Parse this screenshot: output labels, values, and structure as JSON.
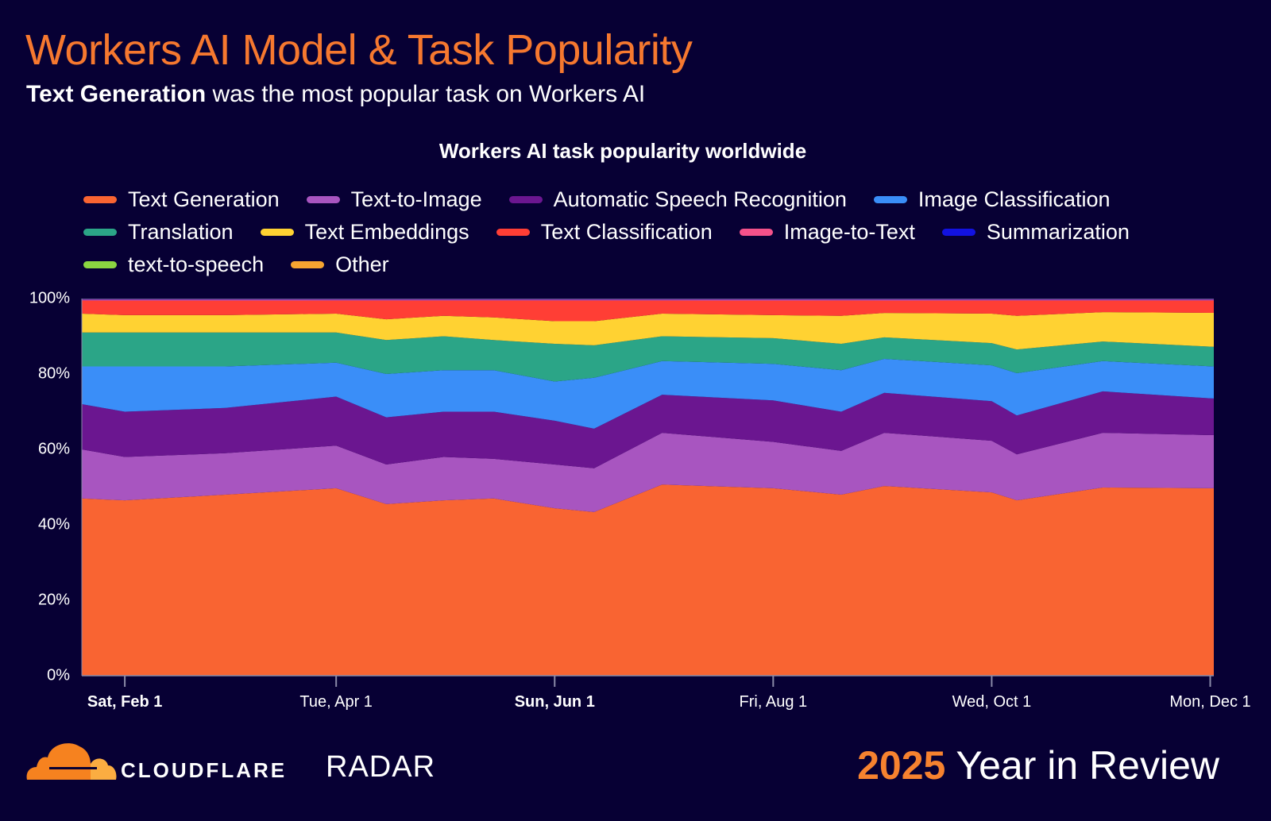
{
  "header": {
    "title": "Workers AI Model & Task Popularity",
    "subtitle_bold": "Text Generation",
    "subtitle_rest": " was the most popular task on Workers AI"
  },
  "chart_data": {
    "type": "area",
    "stacked": true,
    "normalized": true,
    "title": "Workers AI task popularity worldwide",
    "xlabel": "",
    "ylabel": "",
    "ylim": [
      0,
      100
    ],
    "y_ticks": [
      "0%",
      "20%",
      "40%",
      "60%",
      "80%",
      "100%"
    ],
    "x_range": [
      "2025-01-20",
      "2025-12-02"
    ],
    "x_ticks": [
      {
        "date": "2025-02-01",
        "label": "Sat, Feb 1",
        "bold": true
      },
      {
        "date": "2025-04-01",
        "label": "Tue, Apr 1",
        "bold": false
      },
      {
        "date": "2025-06-01",
        "label": "Sun, Jun 1",
        "bold": true
      },
      {
        "date": "2025-08-01",
        "label": "Fri, Aug 1",
        "bold": false
      },
      {
        "date": "2025-10-01",
        "label": "Wed, Oct 1",
        "bold": false
      },
      {
        "date": "2025-12-01",
        "label": "Mon, Dec 1",
        "bold": false
      }
    ],
    "grid": false,
    "legend_position": "top",
    "x": [
      "2025-01-20",
      "2025-02-01",
      "2025-03-01",
      "2025-04-01",
      "2025-04-15",
      "2025-05-01",
      "2025-05-15",
      "2025-06-01",
      "2025-06-12",
      "2025-07-01",
      "2025-08-01",
      "2025-08-20",
      "2025-09-01",
      "2025-10-01",
      "2025-10-08",
      "2025-11-01",
      "2025-12-02"
    ],
    "series": [
      {
        "name": "Text Generation",
        "color": "#F96432",
        "values": [
          47,
          46.5,
          48,
          49.7,
          45.5,
          46.5,
          47,
          44.4,
          43.4,
          50.7,
          49.7,
          48,
          50.3,
          48.6,
          46.5,
          49.9,
          49.7
        ]
      },
      {
        "name": "Text-to-Image",
        "color": "#A855C0",
        "values": [
          13,
          11.5,
          11,
          11.3,
          10.5,
          11.5,
          10.5,
          11.6,
          11.6,
          13.7,
          12.3,
          11.6,
          14.1,
          13.7,
          12.2,
          14.5,
          14.1
        ]
      },
      {
        "name": "Automatic Speech Recognition",
        "color": "#6B1690",
        "values": [
          12,
          12,
          12,
          13,
          12.5,
          12,
          12.5,
          11.6,
          10.5,
          10.1,
          11,
          10.4,
          10.6,
          10.5,
          10.3,
          11,
          9.7
        ]
      },
      {
        "name": "Image Classification",
        "color": "#3A8EF8",
        "values": [
          10,
          12,
          11,
          9,
          11.5,
          11,
          11,
          10.4,
          13.5,
          8.9,
          9.7,
          11,
          9,
          9.5,
          11.2,
          8,
          8.5
        ]
      },
      {
        "name": "Translation",
        "color": "#2BA587",
        "values": [
          9,
          9,
          9,
          8,
          9,
          9,
          8,
          10,
          8.6,
          6.6,
          6.8,
          7,
          5.7,
          5.9,
          6.3,
          5.2,
          5.2
        ]
      },
      {
        "name": "Text Embeddings",
        "color": "#FFD232",
        "values": [
          5,
          4.6,
          4.6,
          5,
          5.5,
          5.4,
          6,
          6,
          6.4,
          6,
          6.1,
          7.4,
          6.5,
          7.8,
          8.9,
          7.8,
          9
        ]
      },
      {
        "name": "Text Classification",
        "color": "#FF3E35",
        "values": [
          3.4,
          3.8,
          3.8,
          3.4,
          4.9,
          4,
          4.4,
          5.4,
          5.4,
          3.4,
          3.8,
          4,
          3.2,
          3.4,
          4,
          3,
          3.2
        ]
      },
      {
        "name": "Image-to-Text",
        "color": "#F4518A",
        "values": [
          0.3,
          0.3,
          0.3,
          0.3,
          0.3,
          0.3,
          0.3,
          0.3,
          0.3,
          0.3,
          0.3,
          0.3,
          0.3,
          0.3,
          0.3,
          0.3,
          0.3
        ]
      },
      {
        "name": "Summarization",
        "color": "#1212E0",
        "values": [
          0.2,
          0.2,
          0.2,
          0.2,
          0.2,
          0.2,
          0.2,
          0.2,
          0.2,
          0.2,
          0.2,
          0.2,
          0.2,
          0.2,
          0.2,
          0.2,
          0.2
        ]
      },
      {
        "name": "text-to-speech",
        "color": "#8BD641",
        "values": [
          0.05,
          0.05,
          0.05,
          0.05,
          0.05,
          0.05,
          0.05,
          0.05,
          0.05,
          0.05,
          0.05,
          0.05,
          0.05,
          0.05,
          0.05,
          0.05,
          0.05
        ]
      },
      {
        "name": "Other",
        "color": "#F6A431",
        "values": [
          0.05,
          0.05,
          0.05,
          0.05,
          0.05,
          0.05,
          0.05,
          0.05,
          0.05,
          0.05,
          0.05,
          0.05,
          0.05,
          0.05,
          0.05,
          0.05,
          0.05
        ]
      }
    ]
  },
  "footer": {
    "brand": "CLOUDFLARE",
    "product": "RADAR",
    "year": "2025",
    "tagline": " Year in Review"
  }
}
